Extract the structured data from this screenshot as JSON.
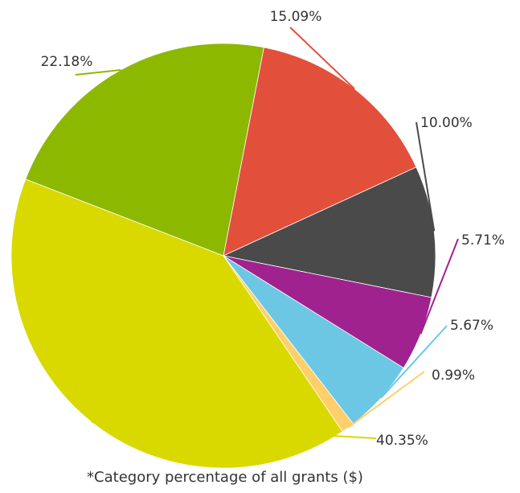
{
  "chart_data": {
    "type": "pie",
    "slices": [
      {
        "label": "15.09%",
        "value": 15.09,
        "color": "#e2503b"
      },
      {
        "label": "10.00%",
        "value": 10.0,
        "color": "#4a4a4a"
      },
      {
        "label": "5.71%",
        "value": 5.71,
        "color": "#a0228e"
      },
      {
        "label": "5.67%",
        "value": 5.67,
        "color": "#6cc7e5"
      },
      {
        "label": "0.99%",
        "value": 0.99,
        "color": "#fecf6a"
      },
      {
        "label": "40.35%",
        "value": 40.35,
        "color": "#d9d900"
      },
      {
        "label": "22.18%",
        "value": 22.18,
        "color": "#8db800"
      }
    ],
    "start_angle_deg": 11,
    "direction": "clockwise",
    "footnote": "*Category percentage of all grants ($)"
  }
}
